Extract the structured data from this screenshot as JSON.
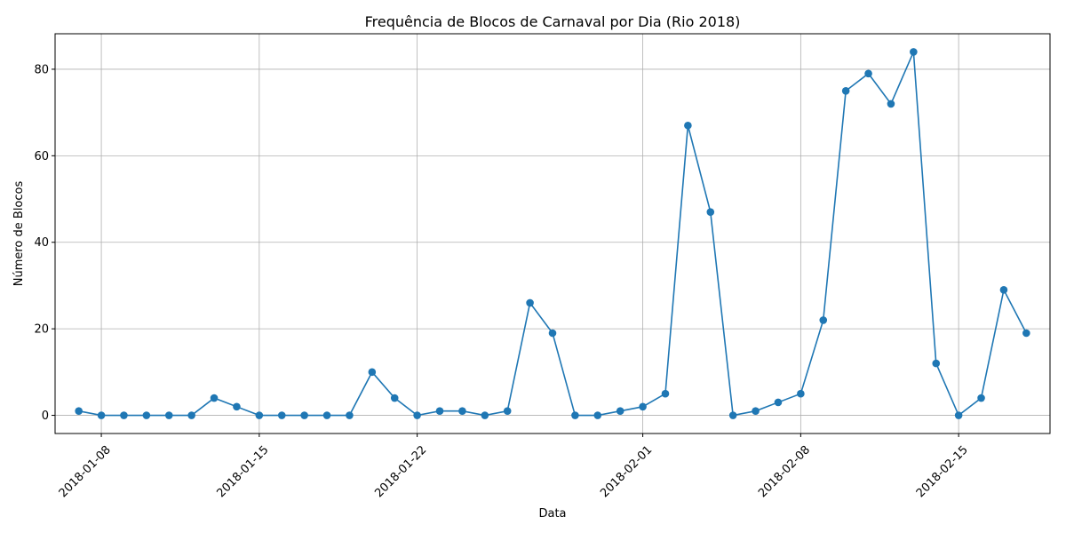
{
  "chart_data": {
    "type": "line",
    "title": "Frequência de Blocos de Carnaval por Dia (Rio 2018)",
    "xlabel": "Data",
    "ylabel": "Número de Blocos",
    "x_start_date": "2018-01-07",
    "x_range_days": [
      -1.05,
      43.05
    ],
    "ylim": [
      -4.2,
      88.2
    ],
    "xticks": [
      {
        "day": 1,
        "label": "2018-01-08"
      },
      {
        "day": 8,
        "label": "2018-01-15"
      },
      {
        "day": 15,
        "label": "2018-01-22"
      },
      {
        "day": 25,
        "label": "2018-02-01"
      },
      {
        "day": 32,
        "label": "2018-02-08"
      },
      {
        "day": 39,
        "label": "2018-02-15"
      }
    ],
    "yticks": [
      0,
      20,
      40,
      60,
      80
    ],
    "grid": true,
    "series": [
      {
        "name": "Número de Blocos",
        "color": "#1f77b4",
        "x": [
          "2018-01-07",
          "2018-01-08",
          "2018-01-09",
          "2018-01-10",
          "2018-01-11",
          "2018-01-12",
          "2018-01-13",
          "2018-01-14",
          "2018-01-15",
          "2018-01-16",
          "2018-01-17",
          "2018-01-18",
          "2018-01-19",
          "2018-01-20",
          "2018-01-21",
          "2018-01-22",
          "2018-01-23",
          "2018-01-24",
          "2018-01-25",
          "2018-01-26",
          "2018-01-27",
          "2018-01-28",
          "2018-01-29",
          "2018-01-30",
          "2018-01-31",
          "2018-02-01",
          "2018-02-02",
          "2018-02-03",
          "2018-02-04",
          "2018-02-05",
          "2018-02-06",
          "2018-02-07",
          "2018-02-08",
          "2018-02-09",
          "2018-02-10",
          "2018-02-11",
          "2018-02-12",
          "2018-02-13",
          "2018-02-14",
          "2018-02-15",
          "2018-02-16",
          "2018-02-17",
          "2018-02-18"
        ],
        "values": [
          1,
          0,
          0,
          0,
          0,
          0,
          4,
          2,
          0,
          0,
          0,
          0,
          0,
          10,
          4,
          0,
          1,
          1,
          0,
          1,
          26,
          19,
          0,
          0,
          1,
          2,
          5,
          67,
          47,
          0,
          1,
          3,
          5,
          22,
          75,
          79,
          72,
          84,
          12,
          0,
          4,
          29,
          19
        ]
      }
    ]
  }
}
